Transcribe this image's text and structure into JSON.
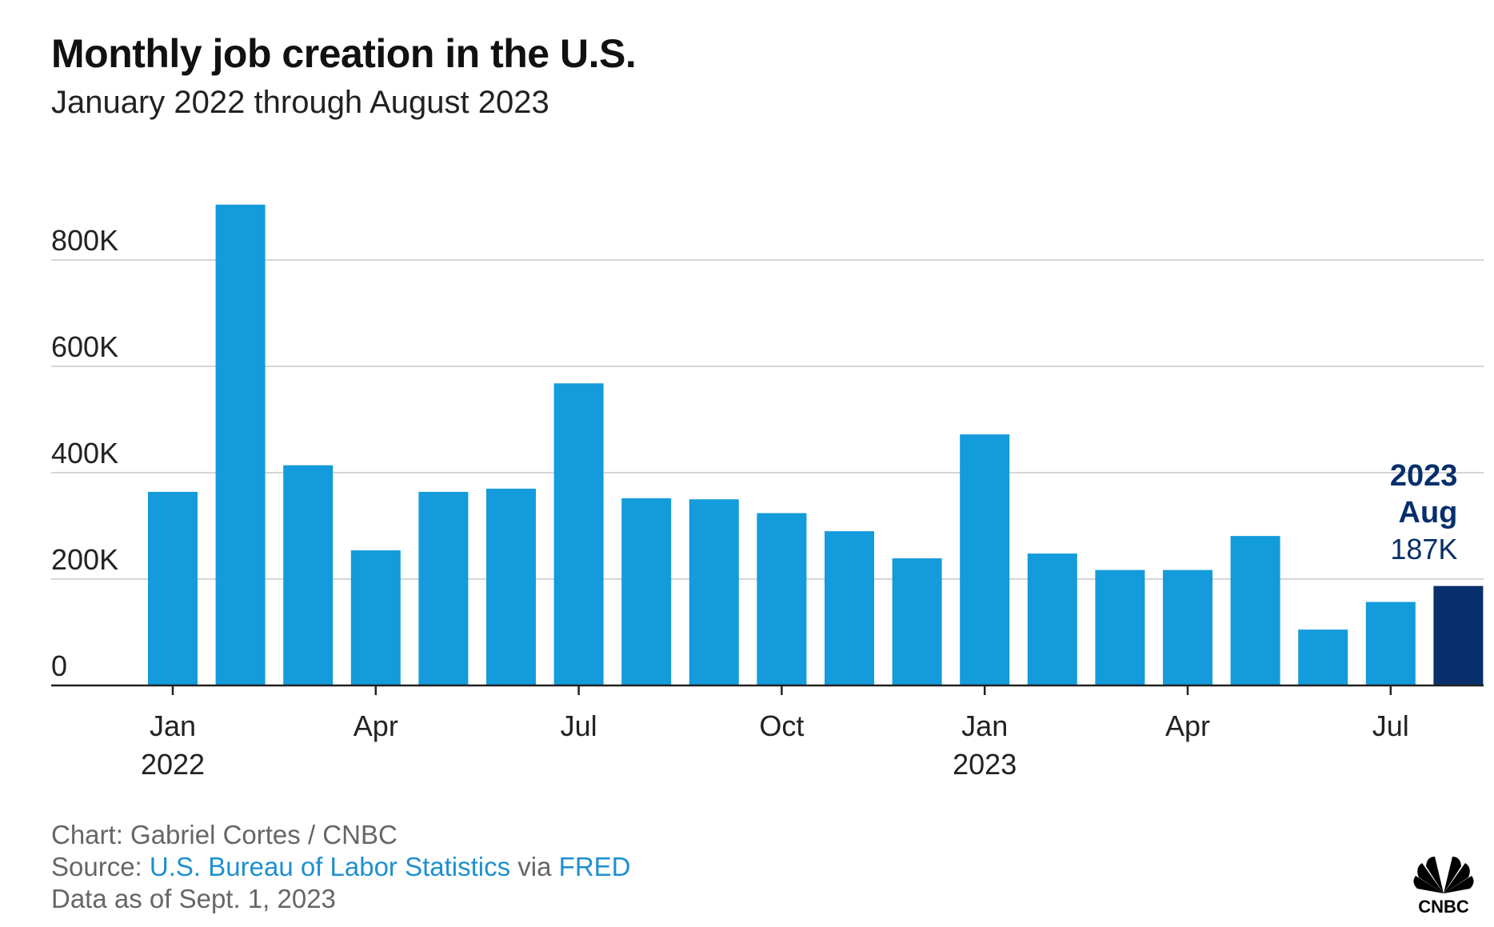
{
  "title": "Monthly job creation in the U.S.",
  "subtitle": "January 2022 through August 2023",
  "footer": {
    "chart_credit": "Chart: Gabriel Cortes / CNBC",
    "source_prefix": "Source: ",
    "source_name": "U.S. Bureau of Labor Statistics",
    "source_via": " via ",
    "source_fred": "FRED",
    "data_as_of": "Data as of Sept. 1, 2023"
  },
  "logo": {
    "icon": "cnbc-peacock-icon",
    "text": "CNBC"
  },
  "colors": {
    "bar": "#149bdc",
    "highlight": "#062f6b",
    "grid": "#d5d5d5",
    "axis": "#222222",
    "label": "#222222",
    "link": "#1e8fd0"
  },
  "chart_data": {
    "type": "bar",
    "categories": [
      "Jan 2022",
      "Feb 2022",
      "Mar 2022",
      "Apr 2022",
      "May 2022",
      "Jun 2022",
      "Jul 2022",
      "Aug 2022",
      "Sep 2022",
      "Oct 2022",
      "Nov 2022",
      "Dec 2022",
      "Jan 2023",
      "Feb 2023",
      "Mar 2023",
      "Apr 2023",
      "May 2023",
      "Jun 2023",
      "Jul 2023",
      "Aug 2023"
    ],
    "values": [
      364000,
      904000,
      414000,
      254000,
      364000,
      370000,
      568000,
      352000,
      350000,
      324000,
      290000,
      239000,
      472000,
      248000,
      217000,
      217000,
      281000,
      105000,
      157000,
      187000
    ],
    "highlight_index": 19,
    "ylim": [
      0,
      900000
    ],
    "yticks": [
      0,
      200000,
      400000,
      600000,
      800000
    ],
    "ytick_labels": [
      "0",
      "200K",
      "400K",
      "600K",
      "800K"
    ],
    "xticks": [
      {
        "index": 0,
        "label": "Jan",
        "sublabel": "2022"
      },
      {
        "index": 3,
        "label": "Apr",
        "sublabel": ""
      },
      {
        "index": 6,
        "label": "Jul",
        "sublabel": ""
      },
      {
        "index": 9,
        "label": "Oct",
        "sublabel": ""
      },
      {
        "index": 12,
        "label": "Jan",
        "sublabel": "2023"
      },
      {
        "index": 15,
        "label": "Apr",
        "sublabel": ""
      },
      {
        "index": 18,
        "label": "Jul",
        "sublabel": ""
      }
    ],
    "annotation": {
      "line1": "2023",
      "line2": "Aug",
      "line3": "187K"
    },
    "grid": true,
    "legend": "none",
    "xlabel": "",
    "ylabel": ""
  }
}
